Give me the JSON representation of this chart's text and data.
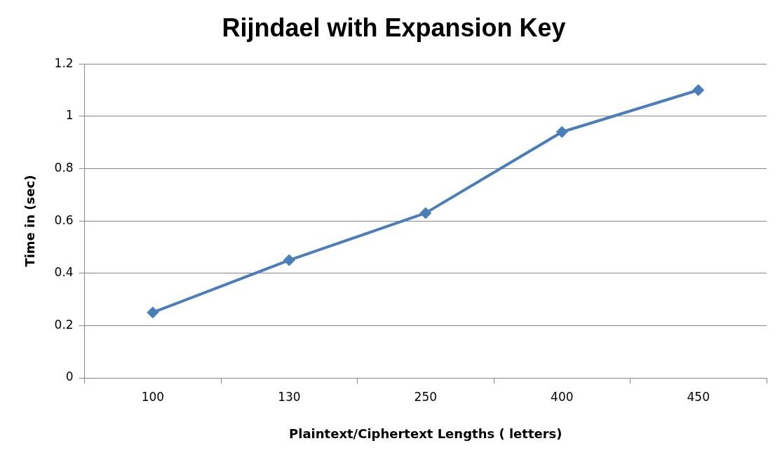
{
  "chart_data": {
    "type": "line",
    "title": "Rijndael with Expansion Key",
    "xlabel": "Plaintext/Ciphertext Lengths ( letters)",
    "ylabel": "Time in (sec)",
    "categories": [
      "100",
      "130",
      "250",
      "400",
      "450"
    ],
    "series": [
      {
        "color": "#4a7ebb",
        "values": [
          0.25,
          0.45,
          0.63,
          0.94,
          1.1
        ]
      }
    ],
    "ylim": [
      0,
      1.2
    ],
    "yticks": [
      0,
      0.2,
      0.4,
      0.6,
      0.8,
      1,
      1.2
    ],
    "grid": "y",
    "legend": false,
    "marker": "diamond",
    "line_style": "solid"
  }
}
